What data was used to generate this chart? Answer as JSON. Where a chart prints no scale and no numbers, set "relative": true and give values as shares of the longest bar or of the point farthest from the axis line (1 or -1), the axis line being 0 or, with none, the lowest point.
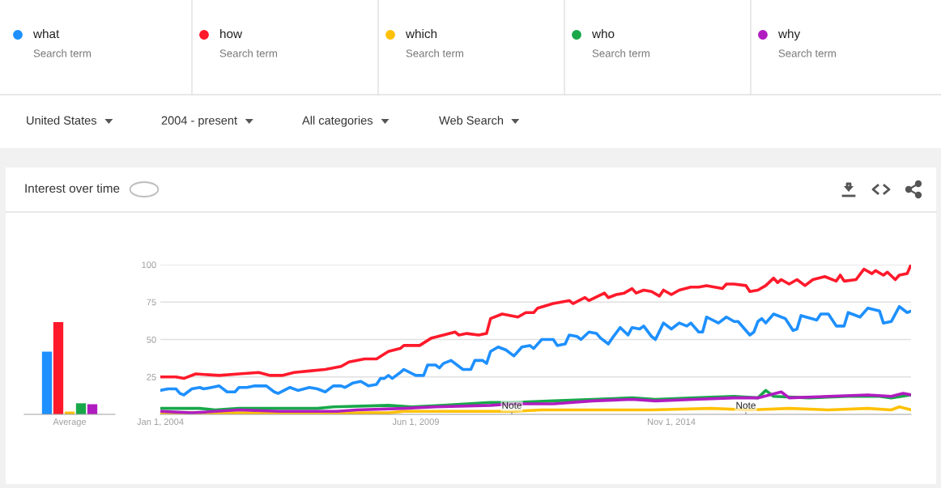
{
  "chart_data": [
    {
      "type": "bar",
      "title": "Interest over time",
      "categories": [
        "Average"
      ],
      "relative": true,
      "tick_labels": "x",
      "annotations": [
        "Search term",
        "Search term",
        "Search term",
        "Search term",
        "Search term",
        "United States",
        "2004 - present",
        "All categories",
        "Web Search"
      ],
      "series": [
        {
          "color": "#1e90ff",
          "values": [
            0.68
          ]
        },
        {
          "color": "#ff1a2b",
          "values": [
            1
          ]
        },
        {
          "color": "#ffc107",
          "values": [
            0.03
          ]
        },
        {
          "color": "#18a84a",
          "values": [
            0.12
          ]
        },
        {
          "color": "#b11cc0",
          "values": [
            0.11
          ]
        }
      ]
    },
    {
      "type": "line",
      "xlim": [
        "2004-01",
        "2019-12"
      ],
      "ylim": [
        0,
        100
      ],
      "yticks": [
        25,
        50,
        75,
        100
      ],
      "grid": "y",
      "legend": "top",
      "xticks": [
        {
          "value": "2004-01-01",
          "label": "Jan 1, 2004"
        },
        {
          "value": "2009-06-01",
          "label": "Jun 1, 2009"
        },
        {
          "value": "2014-11-01",
          "label": "Nov 1, 2014"
        }
      ],
      "annotations": [
        "Note",
        "Note"
      ],
      "series": [
        {
          "name": "what",
          "color": "#1e90ff",
          "x": [
            "2004-01",
            "2004-03",
            "2004-05",
            "2004-06",
            "2004-07",
            "2004-09",
            "2004-11",
            "2004-12",
            "2005-02",
            "2005-04",
            "2005-06",
            "2005-08",
            "2005-09",
            "2005-11",
            "2006-01",
            "2006-04",
            "2006-06",
            "2006-07",
            "2006-10",
            "2006-12",
            "2007-03",
            "2007-05",
            "2007-07",
            "2007-09",
            "2007-11",
            "2007-12",
            "2008-02",
            "2008-04",
            "2008-06",
            "2008-08",
            "2008-09",
            "2008-10",
            "2008-11",
            "2008-12",
            "2009-02",
            "2009-03",
            "2009-06",
            "2009-08",
            "2009-09",
            "2009-11",
            "2009-12",
            "2010-01",
            "2010-03",
            "2010-06",
            "2010-08",
            "2010-09",
            "2010-11",
            "2010-12",
            "2011-01",
            "2011-03",
            "2011-05",
            "2011-07",
            "2011-09",
            "2011-11",
            "2011-12",
            "2012-02",
            "2012-05",
            "2012-06",
            "2012-08",
            "2012-09",
            "2012-11",
            "2012-12",
            "2013-02",
            "2013-04",
            "2013-05",
            "2013-07",
            "2013-08",
            "2013-10",
            "2013-12",
            "2014-01",
            "2014-03",
            "2014-04",
            "2014-06",
            "2014-07",
            "2014-09",
            "2014-11",
            "2015-01",
            "2015-03",
            "2015-04",
            "2015-06",
            "2015-07",
            "2015-08",
            "2015-11",
            "2016-01",
            "2016-03",
            "2016-04",
            "2016-07",
            "2016-08",
            "2016-09",
            "2016-10",
            "2016-11",
            "2017-01",
            "2017-04",
            "2017-06",
            "2017-07",
            "2017-08",
            "2017-12",
            "2018-01",
            "2018-03",
            "2018-05",
            "2018-07",
            "2018-08",
            "2018-11",
            "2019-01",
            "2019-04",
            "2019-05",
            "2019-07",
            "2019-09",
            "2019-11",
            "2019-12"
          ],
          "values": [
            16,
            17,
            17,
            14,
            13,
            17,
            18,
            17,
            18,
            19,
            15,
            15,
            18,
            18,
            19,
            19,
            15,
            14,
            18,
            16,
            18,
            17,
            15,
            19,
            19,
            18,
            21,
            22,
            19,
            20,
            24,
            24,
            26,
            24,
            28,
            30,
            26,
            26,
            33,
            33,
            31,
            34,
            36,
            30,
            30,
            36,
            36,
            34,
            42,
            45,
            43,
            39,
            45,
            46,
            44,
            50,
            50,
            46,
            47,
            53,
            52,
            50,
            55,
            54,
            51,
            47,
            51,
            58,
            53,
            58,
            57,
            59,
            52,
            50,
            61,
            57,
            61,
            59,
            61,
            55,
            55,
            65,
            61,
            65,
            62,
            62,
            53,
            55,
            62,
            64,
            61,
            67,
            64,
            56,
            57,
            66,
            63,
            67,
            67,
            59,
            59,
            68,
            65,
            71,
            69,
            61,
            62,
            72,
            68,
            69
          ]
        },
        {
          "name": "how",
          "color": "#ff1a2b",
          "x": [
            "2004-01",
            "2004-05",
            "2004-07",
            "2004-10",
            "2005-04",
            "2005-09",
            "2006-02",
            "2006-05",
            "2006-08",
            "2006-11",
            "2007-03",
            "2007-07",
            "2007-11",
            "2008-01",
            "2008-05",
            "2008-08",
            "2008-11",
            "2009-02",
            "2009-03",
            "2009-07",
            "2009-10",
            "2010-01",
            "2010-04",
            "2010-05",
            "2010-07",
            "2010-10",
            "2010-12",
            "2011-01",
            "2011-04",
            "2011-08",
            "2011-10",
            "2011-12",
            "2012-01",
            "2012-05",
            "2012-09",
            "2012-10",
            "2013-01",
            "2013-02",
            "2013-06",
            "2013-07",
            "2013-09",
            "2013-11",
            "2014-01",
            "2014-02",
            "2014-04",
            "2014-06",
            "2014-08",
            "2014-09",
            "2014-11",
            "2015-01",
            "2015-04",
            "2015-06",
            "2015-08",
            "2015-12",
            "2016-01",
            "2016-03",
            "2016-06",
            "2016-07",
            "2016-09",
            "2016-11",
            "2017-01",
            "2017-02",
            "2017-03",
            "2017-05",
            "2017-07",
            "2017-09",
            "2017-11",
            "2018-02",
            "2018-05",
            "2018-06",
            "2018-07",
            "2018-10",
            "2018-12",
            "2019-02",
            "2019-03",
            "2019-05",
            "2019-06",
            "2019-08",
            "2019-09",
            "2019-11",
            "2019-12"
          ],
          "values": [
            25,
            25,
            24,
            27,
            26,
            27,
            28,
            26,
            26,
            28,
            29,
            30,
            32,
            35,
            37,
            37,
            42,
            44,
            46,
            46,
            51,
            53,
            55,
            53,
            54,
            53,
            54,
            64,
            67,
            65,
            68,
            68,
            71,
            74,
            76,
            74,
            78,
            76,
            81,
            78,
            80,
            81,
            84,
            81,
            83,
            82,
            79,
            83,
            80,
            83,
            85,
            85,
            86,
            84,
            87,
            87,
            86,
            82,
            83,
            86,
            91,
            88,
            90,
            87,
            90,
            86,
            90,
            92,
            89,
            93,
            89,
            90,
            97,
            94,
            96,
            93,
            95,
            90,
            93,
            94,
            100
          ]
        },
        {
          "name": "which",
          "color": "#ffc107",
          "x": [
            "2004-01",
            "2006-07",
            "2008-11",
            "2009-03",
            "2010-04",
            "2011-02",
            "2011-07",
            "2012-02",
            "2013-03",
            "2014-01",
            "2014-06",
            "2015-09",
            "2016-07",
            "2017-05",
            "2018-03",
            "2019-01",
            "2019-07",
            "2019-09",
            "2019-12"
          ],
          "values": [
            1,
            1,
            1,
            2,
            2,
            2,
            2,
            3,
            3,
            3,
            3,
            4,
            3,
            4,
            3,
            4,
            3,
            5,
            3
          ]
        },
        {
          "name": "who",
          "color": "#18a84a",
          "x": [
            "2004-01",
            "2004-11",
            "2005-03",
            "2005-09",
            "2006-07",
            "2007-05",
            "2007-09",
            "2008-11",
            "2009-05",
            "2010-01",
            "2011-01",
            "2011-07",
            "2012-05",
            "2013-03",
            "2014-01",
            "2014-07",
            "2015-05",
            "2016-03",
            "2016-09",
            "2016-11",
            "2017-01",
            "2017-10",
            "2018-08",
            "2019-04",
            "2019-07",
            "2019-12"
          ],
          "values": [
            4,
            4,
            3,
            4,
            4,
            4,
            5,
            6,
            5,
            6,
            8,
            8,
            9,
            10,
            11,
            10,
            11,
            12,
            11,
            16,
            12,
            11,
            12,
            12,
            11,
            13
          ]
        },
        {
          "name": "why",
          "color": "#b11cc0",
          "x": [
            "2004-01",
            "2004-09",
            "2005-09",
            "2006-07",
            "2007-10",
            "2008-03",
            "2009-03",
            "2009-11",
            "2011-01",
            "2011-07",
            "2012-05",
            "2013-03",
            "2014-01",
            "2014-07",
            "2015-05",
            "2016-03",
            "2016-09",
            "2017-03",
            "2017-05",
            "2018-03",
            "2019-01",
            "2019-07",
            "2019-10",
            "2019-12"
          ],
          "values": [
            2,
            1,
            3,
            2,
            2,
            3,
            4,
            5,
            6,
            7,
            7,
            9,
            10,
            9,
            10,
            11,
            11,
            15,
            11,
            12,
            13,
            12,
            14,
            13
          ]
        }
      ]
    }
  ]
}
